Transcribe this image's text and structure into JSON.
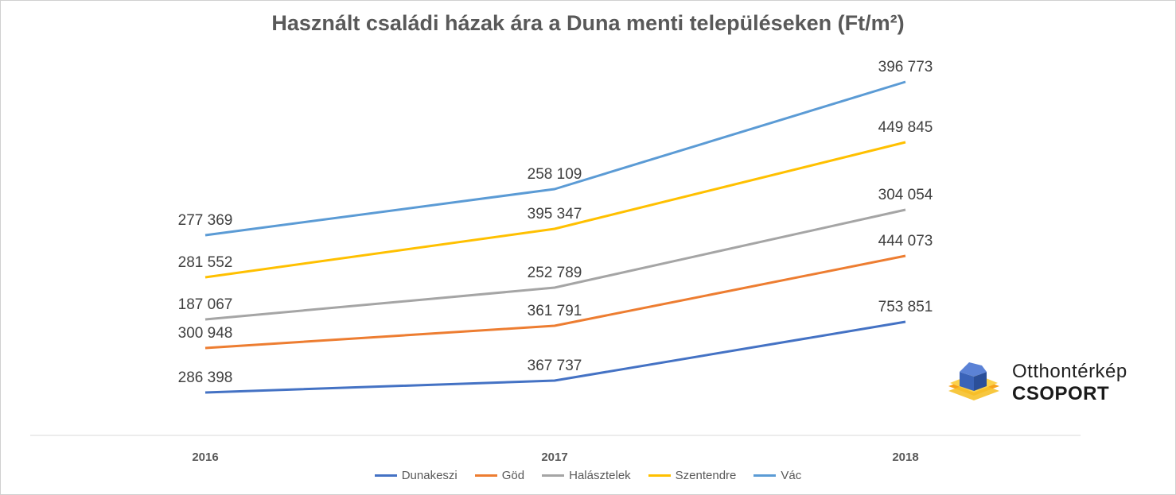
{
  "chart_data": {
    "type": "line",
    "title": "Használt családi házak ára a Duna menti településeken (Ft/m²)",
    "categories": [
      "2016",
      "2017",
      "2018"
    ],
    "grid": false,
    "legend": "bottom",
    "series": [
      {
        "name": "Dunakeszi",
        "color": "#4472c4",
        "labels": [
          "286 398",
          "367 737",
          "753 851"
        ],
        "values": [
          286398,
          367737,
          753851
        ]
      },
      {
        "name": "Göd",
        "color": "#ed7d31",
        "labels": [
          "300 948",
          "361 791",
          "444 073"
        ],
        "values": [
          300948,
          361791,
          444073
        ]
      },
      {
        "name": "Halásztelek",
        "color": "#a5a5a5",
        "labels": [
          "187 067",
          "252 789",
          "304 054"
        ],
        "values": [
          187067,
          252789,
          304054
        ]
      },
      {
        "name": "Szentendre",
        "color": "#ffc000",
        "labels": [
          "281 552",
          "395 347",
          "449 845"
        ],
        "values": [
          281552,
          395347,
          449845
        ]
      },
      {
        "name": "Vác",
        "color": "#5b9bd5",
        "labels": [
          "277 369",
          "258 109",
          "396 773"
        ],
        "values": [
          277369,
          258109,
          396773
        ]
      }
    ]
  },
  "logo": {
    "line1": "Otthontérkép",
    "line2": "CSOPORT"
  }
}
